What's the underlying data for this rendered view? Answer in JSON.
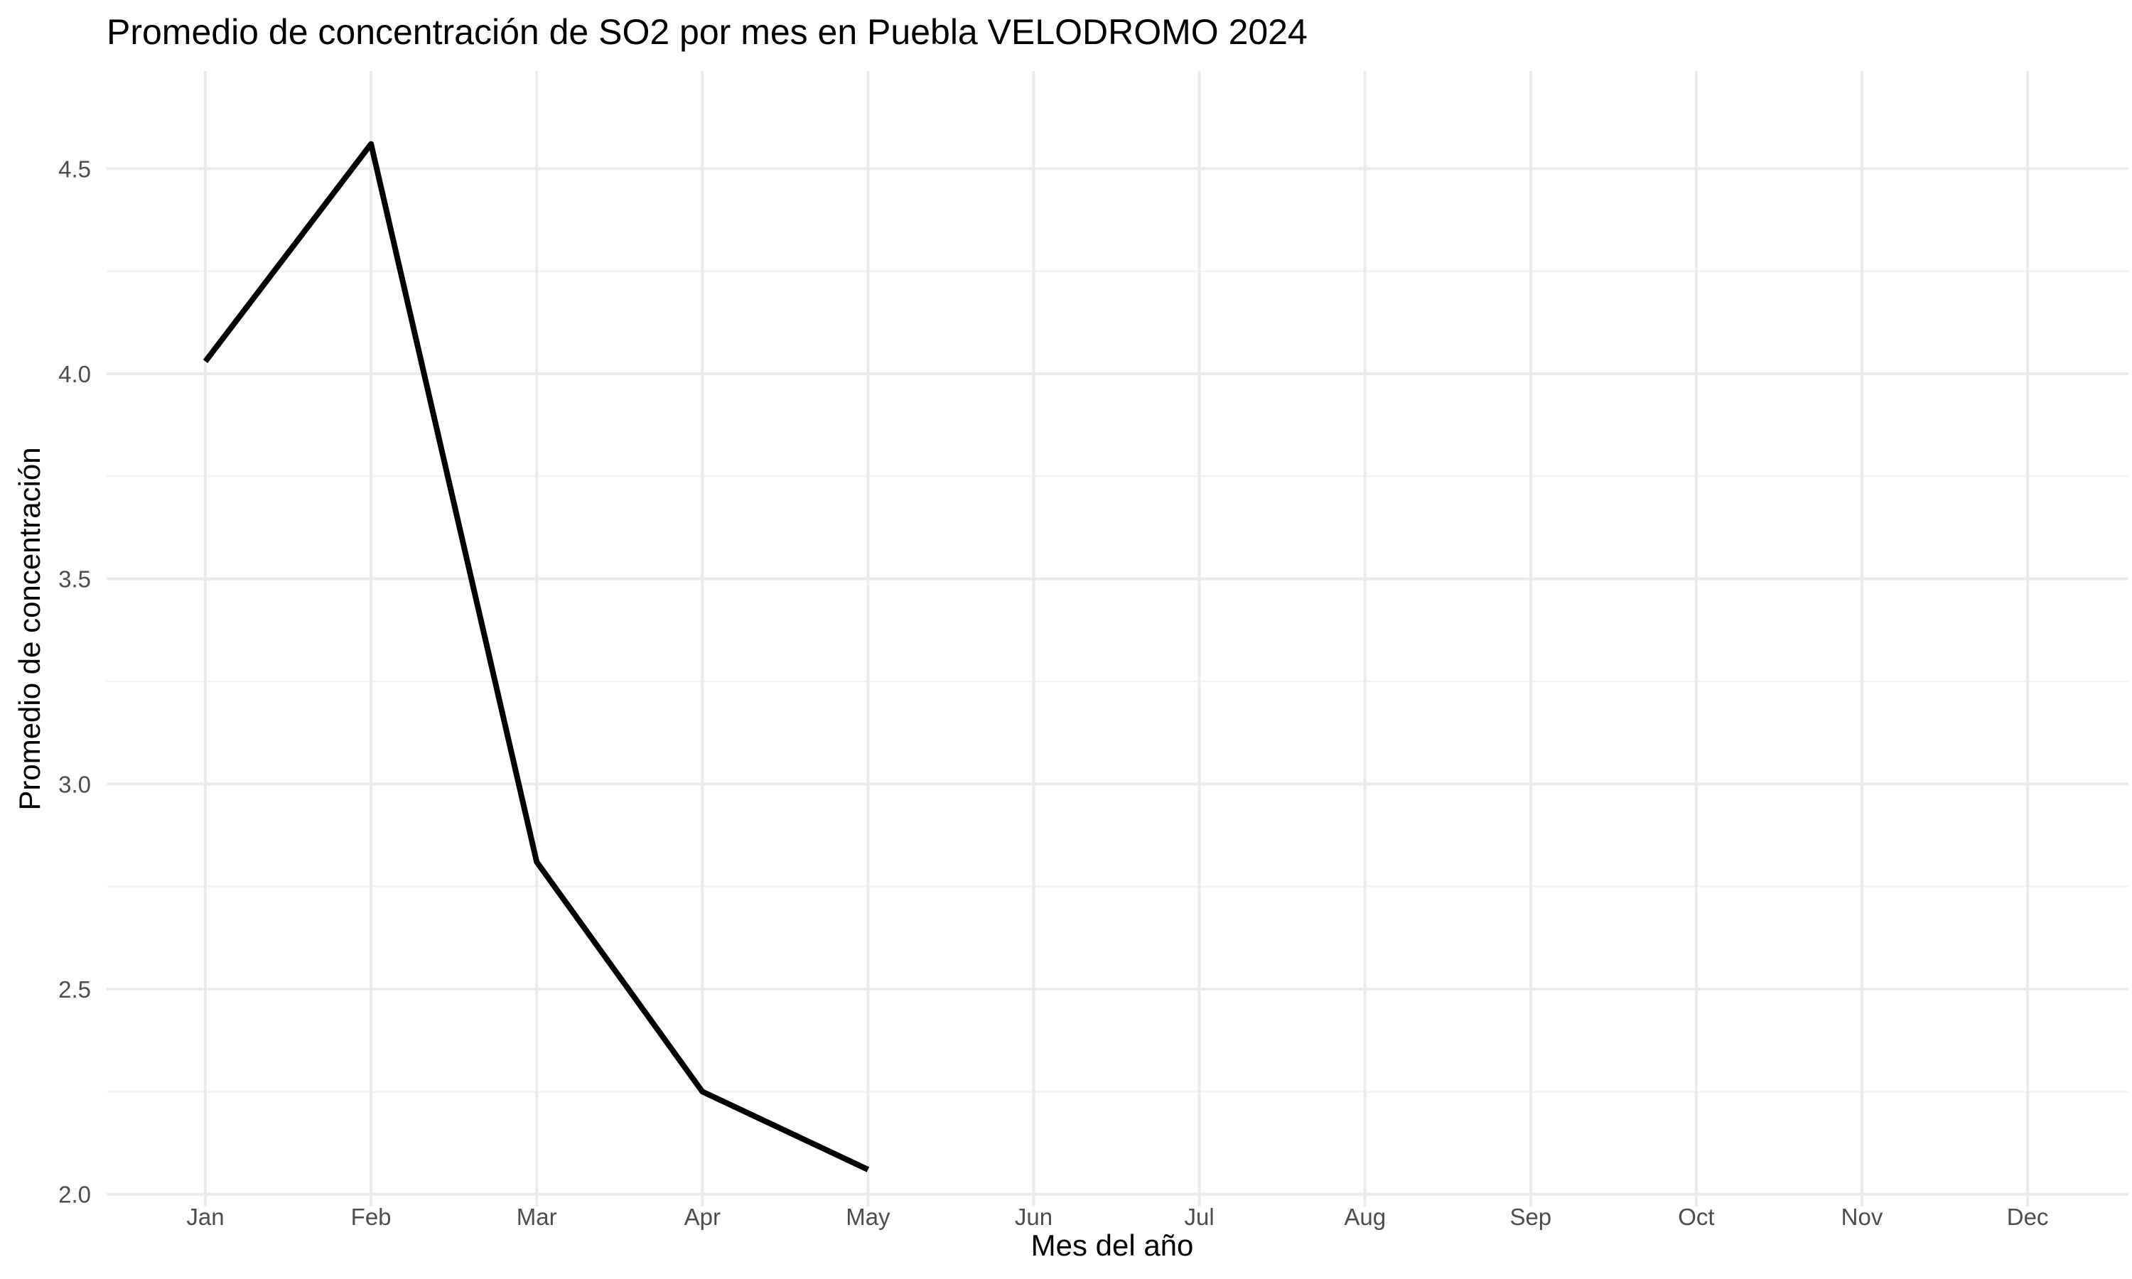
{
  "chart_data": {
    "type": "line",
    "title": "Promedio de concentración de SO2 por mes en Puebla VELODROMO 2024",
    "xlabel": "Mes del año",
    "ylabel": "Promedio de concentración",
    "categories": [
      "Jan",
      "Feb",
      "Mar",
      "Apr",
      "May",
      "Jun",
      "Jul",
      "Aug",
      "Sep",
      "Oct",
      "Nov",
      "Dec"
    ],
    "y_ticks": [
      "2.0",
      "2.5",
      "3.0",
      "3.5",
      "4.0",
      "4.5"
    ],
    "y_tick_values": [
      2.0,
      2.5,
      3.0,
      3.5,
      4.0,
      4.5
    ],
    "ylim": [
      1.97,
      4.62
    ],
    "grid": true,
    "legend": "none",
    "series": [
      {
        "color": "#000000",
        "values": [
          4.03,
          4.56,
          2.81,
          2.25,
          2.06,
          null,
          null,
          null,
          null,
          null,
          null,
          null
        ]
      }
    ]
  }
}
